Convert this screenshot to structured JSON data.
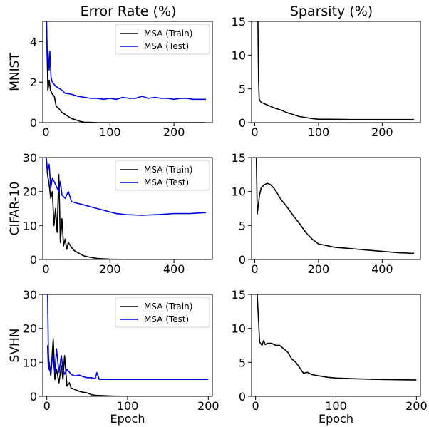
{
  "figure": {
    "col_titles": [
      "Error Rate (%)",
      "Sparsity (%)"
    ]
  },
  "chart_data": [
    {
      "type": "line",
      "row_label": "MNIST",
      "xlabel": "",
      "xlim": [
        -5,
        260
      ],
      "ylim": [
        0,
        5
      ],
      "xticks": [
        0,
        100,
        200
      ],
      "yticks": [
        0,
        2,
        4
      ],
      "legend": {
        "position": "top-right",
        "entries": [
          "MSA (Train)",
          "MSA (Test)"
        ]
      },
      "series": [
        {
          "name": "MSA (Train)",
          "color": "#000000",
          "x": [
            1,
            3,
            5,
            7,
            10,
            13,
            16,
            20,
            25,
            30,
            35,
            40,
            45,
            50,
            55,
            60,
            70,
            80,
            100,
            150,
            200,
            250
          ],
          "y": [
            4.8,
            1.6,
            2.1,
            1.6,
            1.4,
            1.3,
            0.8,
            0.7,
            0.5,
            0.4,
            0.3,
            0.2,
            0.15,
            0.1,
            0.05,
            0.02,
            0.01,
            0,
            0,
            0,
            0,
            0
          ]
        },
        {
          "name": "MSA (Test)",
          "color": "#0000dd",
          "x": [
            1,
            2,
            3,
            5,
            6,
            8,
            10,
            15,
            20,
            25,
            30,
            40,
            50,
            60,
            70,
            80,
            90,
            100,
            110,
            120,
            130,
            140,
            150,
            160,
            170,
            180,
            190,
            200,
            210,
            220,
            230,
            240,
            250
          ],
          "y": [
            5.0,
            3.0,
            3.6,
            2.6,
            3.5,
            2.2,
            2.0,
            1.8,
            1.7,
            1.6,
            1.45,
            1.4,
            1.3,
            1.25,
            1.2,
            1.2,
            1.15,
            1.2,
            1.15,
            1.25,
            1.2,
            1.2,
            1.3,
            1.2,
            1.25,
            1.2,
            1.2,
            1.15,
            1.2,
            1.2,
            1.15,
            1.15,
            1.15
          ]
        }
      ]
    },
    {
      "type": "line",
      "row_label": "",
      "xlabel": "",
      "xlim": [
        -5,
        260
      ],
      "ylim": [
        0,
        15
      ],
      "xticks": [
        0,
        100,
        200
      ],
      "yticks": [
        0,
        5,
        10,
        15
      ],
      "series": [
        {
          "name": "",
          "color": "#000000",
          "x": [
            5,
            6,
            7,
            8,
            10,
            15,
            20,
            25,
            30,
            40,
            50,
            60,
            70,
            80,
            90,
            100,
            120,
            150,
            200,
            250
          ],
          "y": [
            15,
            6.5,
            3.5,
            3.3,
            3.0,
            2.8,
            2.6,
            2.4,
            2.2,
            1.9,
            1.5,
            1.2,
            0.9,
            0.75,
            0.6,
            0.5,
            0.5,
            0.45,
            0.45,
            0.45
          ]
        }
      ]
    },
    {
      "type": "line",
      "row_label": "CIFAR-10",
      "xlabel": "",
      "xlim": [
        -10,
        520
      ],
      "ylim": [
        0,
        30
      ],
      "xticks": [
        0,
        200,
        400
      ],
      "yticks": [
        0,
        10,
        20,
        30
      ],
      "legend": {
        "position": "top-right",
        "entries": [
          "MSA (Train)",
          "MSA (Test)"
        ]
      },
      "series": [
        {
          "name": "MSA (Train)",
          "color": "#000000",
          "x": [
            1,
            5,
            10,
            15,
            20,
            25,
            30,
            35,
            40,
            45,
            50,
            55,
            60,
            65,
            70,
            80,
            90,
            100,
            110,
            120,
            140,
            160,
            180,
            200,
            250,
            300,
            400,
            500
          ],
          "y": [
            30,
            25,
            22,
            18,
            20,
            10,
            15,
            8,
            25,
            5,
            12,
            4,
            6,
            3,
            5,
            3.5,
            2.5,
            2,
            1.5,
            1.0,
            0.6,
            0.3,
            0.2,
            0.1,
            0,
            0,
            0,
            0
          ]
        },
        {
          "name": "MSA (Test)",
          "color": "#0000dd",
          "x": [
            1,
            5,
            10,
            15,
            20,
            25,
            30,
            35,
            40,
            45,
            50,
            60,
            70,
            80,
            100,
            120,
            140,
            160,
            180,
            200,
            220,
            250,
            300,
            350,
            400,
            450,
            500
          ],
          "y": [
            30,
            26,
            28,
            21,
            24,
            23,
            22,
            21,
            20,
            23,
            19,
            18,
            20,
            17,
            16.5,
            16,
            15.5,
            15,
            14.5,
            14,
            13.5,
            13.2,
            13,
            13.2,
            13.5,
            13.5,
            13.8
          ]
        }
      ]
    },
    {
      "type": "line",
      "row_label": "",
      "xlabel": "",
      "xlim": [
        -10,
        520
      ],
      "ylim": [
        0,
        15
      ],
      "xticks": [
        0,
        200,
        400
      ],
      "yticks": [
        0,
        5,
        10,
        15
      ],
      "series": [
        {
          "name": "",
          "color": "#000000",
          "x": [
            5,
            8,
            10,
            15,
            20,
            30,
            40,
            50,
            60,
            70,
            80,
            100,
            120,
            140,
            160,
            180,
            200,
            250,
            300,
            350,
            400,
            450,
            500
          ],
          "y": [
            15,
            6.7,
            7.5,
            9.5,
            10.5,
            11.0,
            11.2,
            11.0,
            10.5,
            9.8,
            9.0,
            7.8,
            6.5,
            5.3,
            4.0,
            3.0,
            2.3,
            1.8,
            1.6,
            1.4,
            1.2,
            1.0,
            0.9
          ]
        }
      ]
    },
    {
      "type": "line",
      "row_label": "SVHN",
      "xlabel": "Epoch",
      "xlim": [
        -5,
        205
      ],
      "ylim": [
        0,
        30
      ],
      "xticks": [
        0,
        100,
        200
      ],
      "yticks": [
        0,
        10,
        20,
        30
      ],
      "legend": {
        "position": "top-right",
        "entries": [
          "MSA (Train)",
          "MSA (Test)"
        ]
      },
      "series": [
        {
          "name": "MSA (Train)",
          "color": "#000000",
          "x": [
            1,
            2,
            3,
            5,
            8,
            10,
            12,
            15,
            18,
            20,
            22,
            25,
            28,
            30,
            35,
            40,
            45,
            50,
            55,
            60,
            70,
            80,
            100,
            150,
            200
          ],
          "y": [
            15,
            8,
            10,
            6,
            17,
            5,
            8,
            4,
            9,
            5,
            12,
            3,
            4,
            2.5,
            2,
            1.5,
            1.2,
            1,
            0.5,
            0.3,
            0.2,
            0.1,
            0,
            0,
            0
          ]
        },
        {
          "name": "MSA (Test)",
          "color": "#0000dd",
          "x": [
            1,
            2,
            3,
            5,
            7,
            10,
            12,
            15,
            18,
            20,
            22,
            25,
            30,
            35,
            40,
            45,
            50,
            55,
            60,
            62,
            65,
            70,
            80,
            100,
            120,
            150,
            175,
            200
          ],
          "y": [
            30,
            13,
            8,
            7,
            12,
            7,
            14,
            7,
            12,
            8,
            6.5,
            8,
            6.5,
            6,
            6.3,
            5.8,
            5.5,
            5.5,
            5.2,
            7,
            5,
            5,
            5,
            5,
            5,
            5,
            5,
            5
          ]
        }
      ]
    },
    {
      "type": "line",
      "row_label": "",
      "xlabel": "Epoch",
      "xlim": [
        -5,
        205
      ],
      "ylim": [
        0,
        15
      ],
      "xticks": [
        0,
        100,
        200
      ],
      "yticks": [
        0,
        5,
        10,
        15
      ],
      "series": [
        {
          "name": "",
          "color": "#000000",
          "x": [
            2,
            5,
            8,
            10,
            12,
            15,
            20,
            25,
            30,
            35,
            40,
            45,
            50,
            55,
            60,
            62,
            65,
            70,
            80,
            90,
            100,
            120,
            150,
            200
          ],
          "y": [
            15,
            8.0,
            7.5,
            8.2,
            7.6,
            7.8,
            7.8,
            7.5,
            7.5,
            7.0,
            6.5,
            5.5,
            5.0,
            4.2,
            3.3,
            3.5,
            3.5,
            3.2,
            3.0,
            2.8,
            2.7,
            2.6,
            2.5,
            2.4
          ]
        }
      ]
    }
  ]
}
